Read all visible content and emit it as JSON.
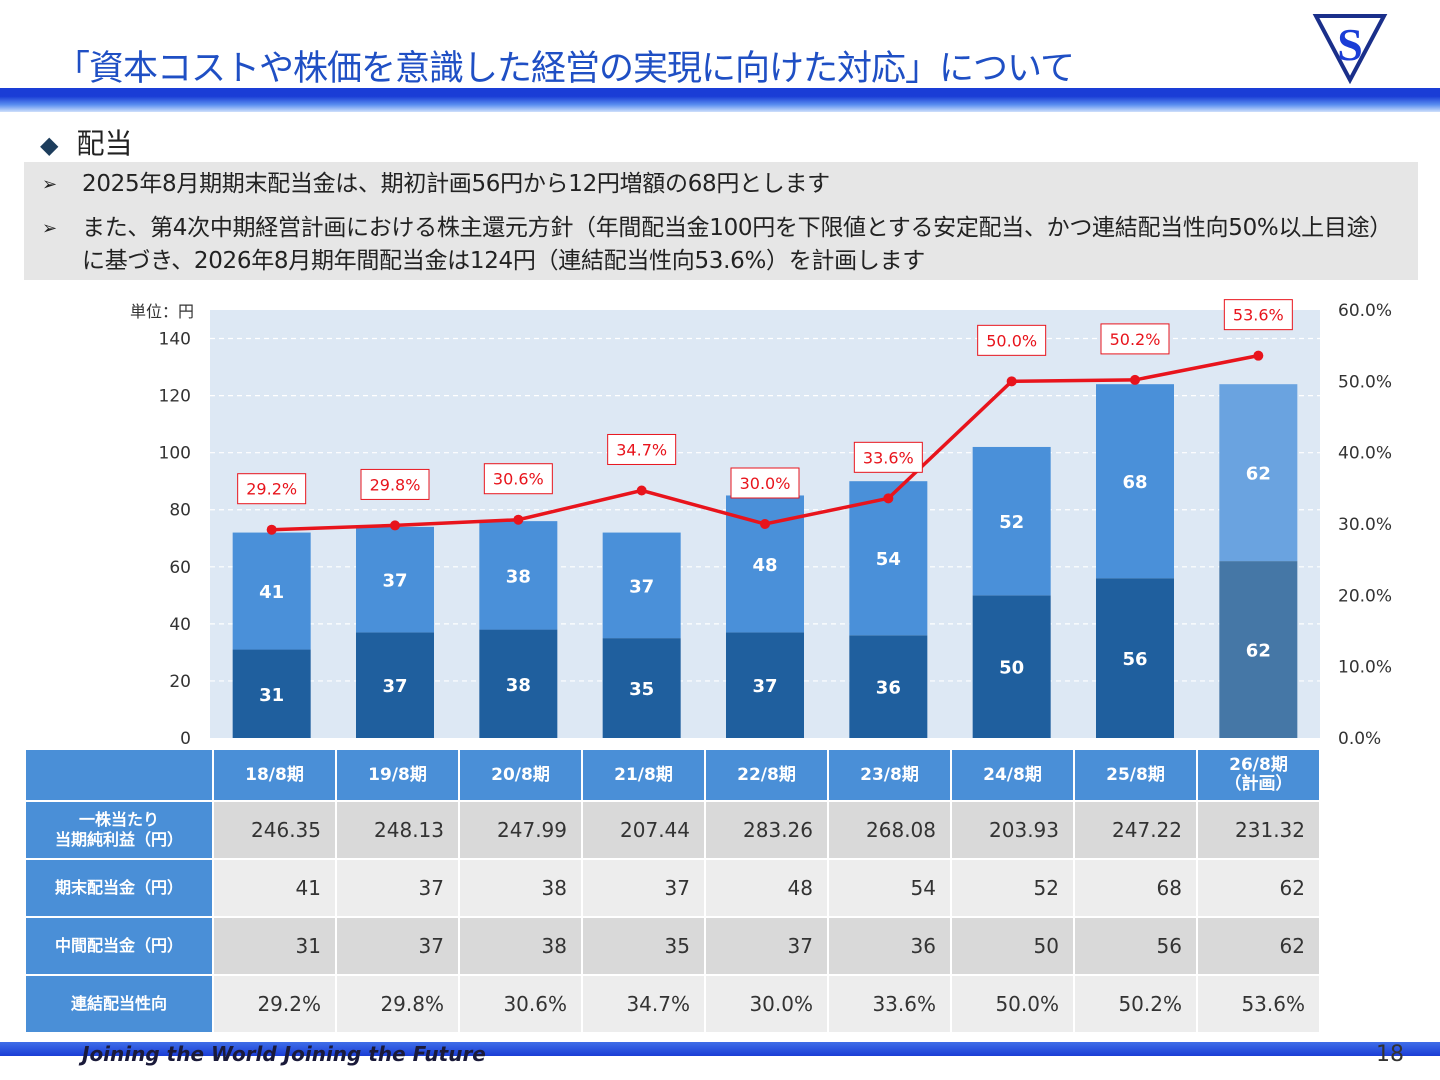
{
  "title": "「資本コストや株価を意識した経営の実現に向けた対応」について",
  "logo_letter": "S",
  "section": {
    "bullet": "◆",
    "heading": "配当"
  },
  "notes": {
    "arrow": "➢",
    "items": [
      "2025年8月期期末配当金は、期初計画56円から12円増額の68円とします",
      "また、第4次中期経営計画における株主還元方針（年間配当金100円を下限値とする安定配当、かつ連結配当性向50%以上目途）に基づき、2026年8月期年間配当金は124円（連結配当性向53.6%）を計画します"
    ]
  },
  "unit_label": "単位：円",
  "chart_data": {
    "type": "bar",
    "stacked": true,
    "categories": [
      "18/8期",
      "19/8期",
      "20/8期",
      "21/8期",
      "22/8期",
      "23/8期",
      "24/8期",
      "25/8期",
      "26/8期\n（計画）"
    ],
    "series": [
      {
        "name": "中間配当金（円）",
        "values": [
          31,
          37,
          38,
          35,
          37,
          36,
          50,
          56,
          62
        ],
        "color": "#1f5f9e",
        "color_plan": "#4577a6"
      },
      {
        "name": "期末配当金（円）",
        "values": [
          41,
          37,
          38,
          37,
          48,
          54,
          52,
          68,
          62
        ],
        "color": "#4a90d9",
        "color_plan": "#6aa3e0"
      }
    ],
    "line": {
      "name": "連結配当性向",
      "values": [
        29.2,
        29.8,
        30.6,
        34.7,
        30.0,
        33.6,
        50.0,
        50.2,
        53.6
      ],
      "labels": [
        "29.2%",
        "29.8%",
        "30.6%",
        "34.7%",
        "30.0%",
        "33.6%",
        "50.0%",
        "50.2%",
        "53.6%"
      ],
      "color": "#e8141c"
    },
    "ylim": [
      0,
      150
    ],
    "yticks": [
      0,
      20,
      40,
      60,
      80,
      100,
      120,
      140
    ],
    "y2lim": [
      0,
      60
    ],
    "y2ticks": [
      "0.0%",
      "10.0%",
      "20.0%",
      "30.0%",
      "40.0%",
      "50.0%",
      "60.0%"
    ],
    "grid": true,
    "plot_background": "#dde8f4"
  },
  "table": {
    "headers": [
      "18/8期",
      "19/8期",
      "20/8期",
      "21/8期",
      "22/8期",
      "23/8期",
      "24/8期",
      "25/8期",
      "26/8期\n（計画）"
    ],
    "rows": [
      {
        "label": "一株当たり\n当期純利益（円）",
        "values": [
          "246.35",
          "248.13",
          "247.99",
          "207.44",
          "283.26",
          "268.08",
          "203.93",
          "247.22",
          "231.32"
        ]
      },
      {
        "label": "期末配当金（円）",
        "values": [
          "41",
          "37",
          "38",
          "37",
          "48",
          "54",
          "52",
          "68",
          "62"
        ]
      },
      {
        "label": "中間配当金（円）",
        "values": [
          "31",
          "37",
          "38",
          "35",
          "37",
          "36",
          "50",
          "56",
          "62"
        ]
      },
      {
        "label": "連結配当性向",
        "values": [
          "29.2%",
          "29.8%",
          "30.6%",
          "34.7%",
          "30.0%",
          "33.6%",
          "50.0%",
          "50.2%",
          "53.6%"
        ]
      }
    ]
  },
  "footer": {
    "slogan": "Joining the World  Joining the Future",
    "page": "18"
  }
}
